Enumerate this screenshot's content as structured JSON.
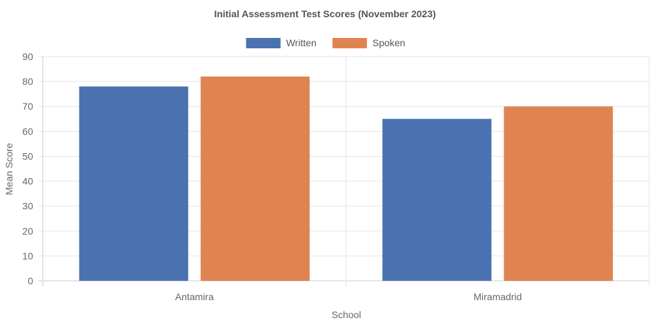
{
  "chart_data": {
    "type": "bar",
    "title": "Initial Assessment Test Scores (November 2023)",
    "xlabel": "School",
    "ylabel": "Mean Score",
    "categories": [
      "Antamira",
      "Miramadrid"
    ],
    "series": [
      {
        "name": "Written",
        "values": [
          78,
          65
        ],
        "color": "#4a72b0"
      },
      {
        "name": "Spoken",
        "values": [
          82,
          70
        ],
        "color": "#df8451"
      }
    ],
    "ylim": [
      0,
      90
    ],
    "yticks": [
      0,
      10,
      20,
      30,
      40,
      50,
      60,
      70,
      80,
      90
    ],
    "grid": true,
    "legend_position": "top-center"
  }
}
